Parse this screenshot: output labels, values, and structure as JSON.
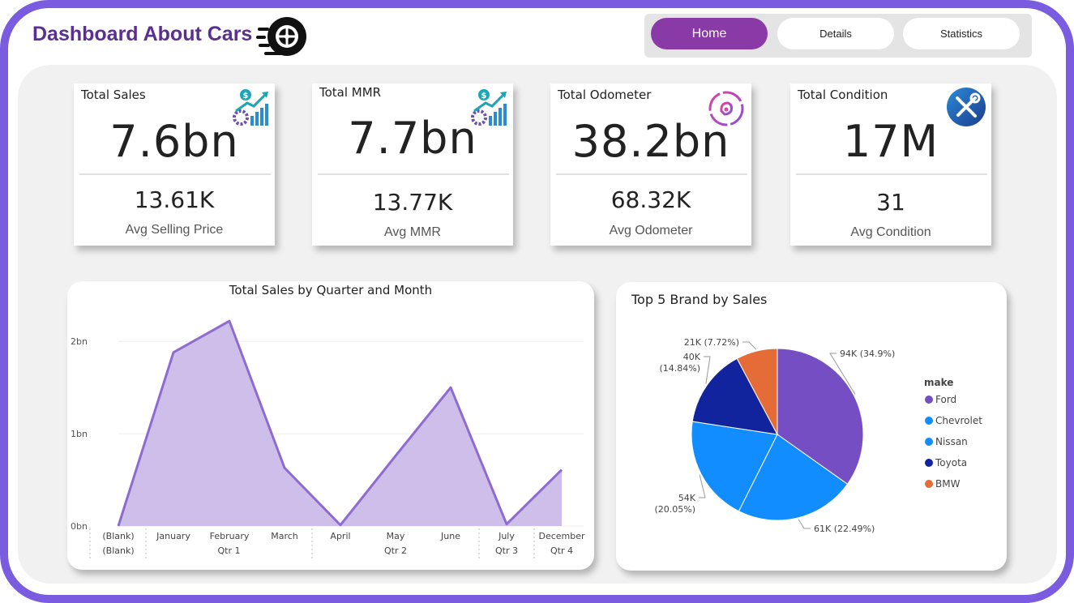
{
  "header": {
    "title": "Dashboard About Cars",
    "logo_icon": "tire-speed-icon"
  },
  "nav": {
    "home": "Home",
    "details": "Details",
    "statistics": "Statistics",
    "active_color": "#8a3aa6"
  },
  "kpis": [
    {
      "title": "Total Sales",
      "value": "7.6bn",
      "avg_value": "13.61K",
      "avg_label": "Avg Selling Price",
      "icon": "sales-growth-icon"
    },
    {
      "title": "Total MMR",
      "value": "7.7bn",
      "avg_value": "13.77K",
      "avg_label": "Avg MMR",
      "icon": "sales-growth-icon"
    },
    {
      "title": "Total Odometer",
      "value": "38.2bn",
      "avg_value": "68.32K",
      "avg_label": "Avg Odometer",
      "icon": "speedometer-icon"
    },
    {
      "title": "Total Condition",
      "value": "17M",
      "avg_value": "31",
      "avg_label": "Avg Condition",
      "icon": "wrench-screwdriver-icon"
    }
  ],
  "chart_data": [
    {
      "type": "area",
      "title": "Total Sales by Quarter and Month",
      "x": [
        "(Blank)",
        "January",
        "February",
        "March",
        "April",
        "May",
        "June",
        "July",
        "December"
      ],
      "quarters": [
        "(Blank)",
        "Qtr 1",
        "Qtr 1",
        "Qtr 1",
        "Qtr 2",
        "Qtr 2",
        "Qtr 2",
        "Qtr 3",
        "Qtr 4"
      ],
      "quarter_labels": [
        "(Blank)",
        "Qtr 1",
        "Qtr 2",
        "Qtr 3",
        "Qtr 4"
      ],
      "series": [
        {
          "values": [
            0,
            1.88,
            2.22,
            0.63,
            0.01,
            0.76,
            1.5,
            0.02,
            0.61
          ]
        }
      ],
      "y_unit": "bn",
      "yticks": [
        "0bn",
        "1bn",
        "2bn"
      ],
      "ylim": [
        0,
        2.3
      ],
      "grid": true,
      "fill_color": "#cdbfea",
      "line_color": "#8f6bd1"
    },
    {
      "type": "pie",
      "title": "Top 5 Brand by Sales",
      "legend_title": "make",
      "legend_position": "right",
      "categories": [
        "Ford",
        "Chevrolet",
        "Nissan",
        "Toyota",
        "BMW"
      ],
      "values": [
        94,
        61,
        54,
        40,
        21
      ],
      "percents": [
        34.9,
        22.49,
        20.05,
        14.84,
        7.72
      ],
      "labels": [
        "94K (34.9%)",
        "61K (22.49%)",
        "54K (20.05%)",
        "40K (14.84%)",
        "21K (7.72%)"
      ],
      "colors": [
        "#744ec2",
        "#118dff",
        "#118dff",
        "#12239e",
        "#e66c37"
      ]
    }
  ]
}
